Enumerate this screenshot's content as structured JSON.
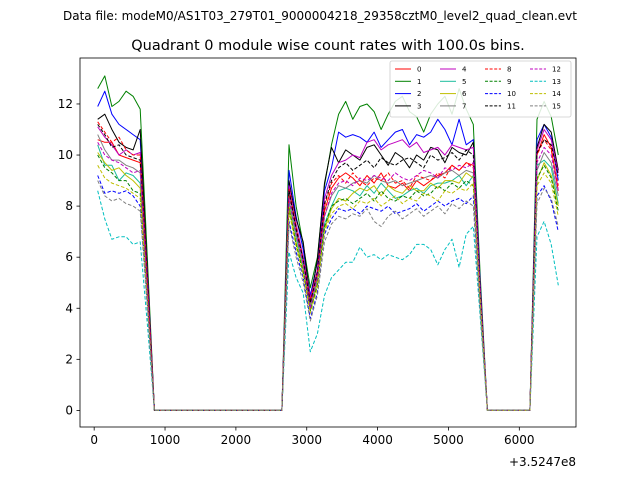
{
  "chart_data": {
    "type": "line",
    "suptitle": "Data file: modeM0/AS1T03_279T01_9000004218_29358cztM0_level2_quad_clean.evt",
    "title": "Quadrant 0 module wise count rates with 100.0s bins.",
    "xlabel": "",
    "ylabel": "",
    "x_offset_label": "+3.5247e8",
    "xlim": [
      -200,
      6800
    ],
    "ylim": [
      -0.65,
      13.8
    ],
    "xticks": [
      0,
      1000,
      2000,
      3000,
      4000,
      5000,
      6000
    ],
    "yticks": [
      0,
      2,
      4,
      6,
      8,
      10,
      12
    ],
    "grid": false,
    "legend_position": "top-right",
    "x": [
      50,
      150,
      250,
      350,
      450,
      550,
      650,
      750,
      850,
      950,
      1050,
      1150,
      1250,
      1350,
      1450,
      1550,
      1650,
      1750,
      1850,
      1950,
      2050,
      2150,
      2250,
      2350,
      2450,
      2550,
      2650,
      2750,
      2850,
      2950,
      3050,
      3150,
      3250,
      3350,
      3450,
      3550,
      3650,
      3750,
      3850,
      3950,
      4050,
      4150,
      4250,
      4350,
      4450,
      4550,
      4650,
      4750,
      4850,
      4950,
      5050,
      5150,
      5250,
      5350,
      5450,
      5550,
      5650,
      5750,
      5850,
      5950,
      6050,
      6150,
      6250,
      6350,
      6450,
      6550
    ],
    "series": [
      {
        "name": "0",
        "color": "#ff0000",
        "dash": "solid",
        "values": [
          10.6,
          10.5,
          10.5,
          10.0,
          9.9,
          9.8,
          9.7,
          5.0,
          0,
          0,
          0,
          0,
          0,
          0,
          0,
          0,
          0,
          0,
          0,
          0,
          0,
          0,
          0,
          0,
          0,
          0,
          0,
          8.5,
          7.0,
          5.8,
          4.2,
          5.2,
          7.8,
          8.7,
          9.1,
          9.3,
          9.1,
          8.8,
          9.2,
          8.9,
          9.3,
          8.8,
          8.7,
          8.9,
          8.6,
          9.0,
          8.8,
          9.0,
          9.2,
          9.3,
          9.6,
          9.4,
          9.7,
          9.6,
          4.5,
          0,
          0,
          0,
          0,
          0,
          0,
          0,
          10.0,
          10.8,
          10.3,
          8.6
        ]
      },
      {
        "name": "1",
        "color": "#008000",
        "dash": "solid",
        "values": [
          12.6,
          13.1,
          11.9,
          12.1,
          12.5,
          12.3,
          11.8,
          6.0,
          0,
          0,
          0,
          0,
          0,
          0,
          0,
          0,
          0,
          0,
          0,
          0,
          0,
          0,
          0,
          0,
          0,
          0,
          0,
          10.4,
          8.0,
          6.5,
          4.8,
          6.0,
          8.8,
          10.4,
          11.6,
          12.1,
          11.4,
          11.9,
          12.0,
          11.7,
          11.0,
          11.6,
          12.1,
          12.3,
          11.7,
          11.5,
          10.9,
          11.6,
          12.0,
          12.3,
          11.6,
          12.6,
          11.8,
          11.2,
          5.2,
          0,
          0,
          0,
          0,
          0,
          0,
          0,
          11.4,
          12.1,
          11.5,
          10.0
        ]
      },
      {
        "name": "2",
        "color": "#0000ff",
        "dash": "solid",
        "values": [
          11.9,
          12.5,
          11.6,
          11.2,
          11.0,
          10.8,
          10.6,
          5.5,
          0,
          0,
          0,
          0,
          0,
          0,
          0,
          0,
          0,
          0,
          0,
          0,
          0,
          0,
          0,
          0,
          0,
          0,
          0,
          9.4,
          7.6,
          6.3,
          4.5,
          5.8,
          8.6,
          9.5,
          10.9,
          10.7,
          10.8,
          10.7,
          10.5,
          10.9,
          10.3,
          10.6,
          10.9,
          11.0,
          10.4,
          10.8,
          10.7,
          10.9,
          11.4,
          11.0,
          10.4,
          11.4,
          10.4,
          10.6,
          4.9,
          0,
          0,
          0,
          0,
          0,
          0,
          0,
          10.6,
          11.2,
          10.7,
          9.0
        ]
      },
      {
        "name": "3",
        "color": "#000000",
        "dash": "solid",
        "values": [
          11.4,
          11.6,
          11.0,
          10.5,
          10.3,
          10.2,
          11.0,
          5.5,
          0,
          0,
          0,
          0,
          0,
          0,
          0,
          0,
          0,
          0,
          0,
          0,
          0,
          0,
          0,
          0,
          0,
          0,
          0,
          9.0,
          7.5,
          6.6,
          4.3,
          5.9,
          8.9,
          10.3,
          9.7,
          10.2,
          10.0,
          9.8,
          10.3,
          10.4,
          10.0,
          9.6,
          10.1,
          9.9,
          9.5,
          10.0,
          9.8,
          10.3,
          10.2,
          9.7,
          10.3,
          10.1,
          10.0,
          10.5,
          4.7,
          0,
          0,
          0,
          0,
          0,
          0,
          0,
          10.3,
          11.2,
          10.9,
          9.4
        ]
      },
      {
        "name": "4",
        "color": "#bf00bf",
        "dash": "solid",
        "values": [
          11.1,
          10.7,
          10.4,
          10.0,
          10.2,
          10.0,
          10.1,
          5.2,
          0,
          0,
          0,
          0,
          0,
          0,
          0,
          0,
          0,
          0,
          0,
          0,
          0,
          0,
          0,
          0,
          0,
          0,
          0,
          8.8,
          7.3,
          6.0,
          4.4,
          5.5,
          8.3,
          9.2,
          9.7,
          9.8,
          10.0,
          9.9,
          10.5,
          10.6,
          10.2,
          10.4,
          10.5,
          10.6,
          10.3,
          10.5,
          10.1,
          10.2,
          10.3,
          10.0,
          10.4,
          10.3,
          10.2,
          10.3,
          4.7,
          0,
          0,
          0,
          0,
          0,
          0,
          0,
          10.2,
          11.0,
          10.6,
          9.3
        ]
      },
      {
        "name": "5",
        "color": "#1abc9c",
        "dash": "solid",
        "values": [
          10.4,
          9.6,
          9.6,
          9.0,
          9.3,
          9.2,
          8.9,
          4.6,
          0,
          0,
          0,
          0,
          0,
          0,
          0,
          0,
          0,
          0,
          0,
          0,
          0,
          0,
          0,
          0,
          0,
          0,
          0,
          8.2,
          6.8,
          5.6,
          4.0,
          5.1,
          7.3,
          8.0,
          8.6,
          8.7,
          8.6,
          8.4,
          8.8,
          8.5,
          8.9,
          8.6,
          8.3,
          8.4,
          8.6,
          8.7,
          8.5,
          8.8,
          8.9,
          8.9,
          9.0,
          9.2,
          8.8,
          9.2,
          4.3,
          0,
          0,
          0,
          0,
          0,
          0,
          0,
          9.6,
          9.8,
          9.5,
          8.1
        ]
      },
      {
        "name": "6",
        "color": "#bfbf00",
        "dash": "solid",
        "values": [
          10.1,
          9.7,
          9.4,
          9.5,
          9.2,
          9.0,
          8.7,
          4.5,
          0,
          0,
          0,
          0,
          0,
          0,
          0,
          0,
          0,
          0,
          0,
          0,
          0,
          0,
          0,
          0,
          0,
          0,
          0,
          8.0,
          6.6,
          5.5,
          3.9,
          5.0,
          7.1,
          7.9,
          8.3,
          8.2,
          8.5,
          8.7,
          8.6,
          8.8,
          8.4,
          8.8,
          8.6,
          8.5,
          8.8,
          8.6,
          8.6,
          8.9,
          8.7,
          9.0,
          9.0,
          8.9,
          9.3,
          9.1,
          4.2,
          0,
          0,
          0,
          0,
          0,
          0,
          0,
          9.0,
          9.7,
          9.2,
          8.0
        ]
      },
      {
        "name": "7",
        "color": "#808080",
        "dash": "solid",
        "values": [
          10.8,
          10.2,
          9.8,
          9.8,
          9.6,
          9.5,
          9.3,
          4.8,
          0,
          0,
          0,
          0,
          0,
          0,
          0,
          0,
          0,
          0,
          0,
          0,
          0,
          0,
          0,
          0,
          0,
          0,
          0,
          8.6,
          7.0,
          5.8,
          4.1,
          5.3,
          7.6,
          8.4,
          8.8,
          8.7,
          8.9,
          9.0,
          8.9,
          9.2,
          9.0,
          8.9,
          9.0,
          8.8,
          8.9,
          9.0,
          9.1,
          9.2,
          9.1,
          9.3,
          9.4,
          9.2,
          9.4,
          9.3,
          4.4,
          0,
          0,
          0,
          0,
          0,
          0,
          0,
          9.4,
          10.1,
          9.7,
          8.4
        ]
      },
      {
        "name": "8",
        "color": "#ff0000",
        "dash": "dashed",
        "values": [
          11.3,
          10.9,
          10.5,
          10.7,
          10.2,
          10.0,
          10.0,
          5.1,
          0,
          0,
          0,
          0,
          0,
          0,
          0,
          0,
          0,
          0,
          0,
          0,
          0,
          0,
          0,
          0,
          0,
          0,
          0,
          8.7,
          7.2,
          5.9,
          4.3,
          5.4,
          8.0,
          8.9,
          9.2,
          8.9,
          9.3,
          9.0,
          8.8,
          9.1,
          9.0,
          9.3,
          8.9,
          9.0,
          8.7,
          9.2,
          9.1,
          9.0,
          9.3,
          9.1,
          9.6,
          9.4,
          9.7,
          9.5,
          4.6,
          0,
          0,
          0,
          0,
          0,
          0,
          0,
          10.0,
          10.6,
          10.2,
          8.8
        ]
      },
      {
        "name": "9",
        "color": "#008000",
        "dash": "dashed",
        "values": [
          10.0,
          9.5,
          9.3,
          9.0,
          9.0,
          8.6,
          8.5,
          4.4,
          0,
          0,
          0,
          0,
          0,
          0,
          0,
          0,
          0,
          0,
          0,
          0,
          0,
          0,
          0,
          0,
          0,
          0,
          0,
          7.9,
          6.5,
          5.4,
          3.9,
          4.9,
          7.2,
          8.0,
          8.2,
          8.3,
          8.1,
          8.3,
          8.5,
          8.2,
          8.6,
          8.3,
          8.2,
          8.4,
          8.3,
          8.6,
          8.4,
          8.5,
          8.8,
          8.6,
          8.9,
          8.7,
          9.0,
          8.8,
          4.1,
          0,
          0,
          0,
          0,
          0,
          0,
          0,
          9.1,
          9.6,
          9.1,
          7.8
        ]
      },
      {
        "name": "10",
        "color": "#0000ff",
        "dash": "dashed",
        "values": [
          9.2,
          8.5,
          8.6,
          8.5,
          8.6,
          8.4,
          8.0,
          4.2,
          0,
          0,
          0,
          0,
          0,
          0,
          0,
          0,
          0,
          0,
          0,
          0,
          0,
          0,
          0,
          0,
          0,
          0,
          0,
          7.4,
          6.2,
          5.2,
          3.6,
          4.6,
          6.9,
          7.5,
          7.9,
          7.8,
          7.9,
          7.7,
          8.0,
          7.9,
          7.8,
          8.0,
          7.7,
          7.8,
          7.9,
          8.1,
          7.8,
          8.0,
          8.2,
          8.0,
          8.2,
          8.3,
          8.1,
          8.4,
          3.9,
          0,
          0,
          0,
          0,
          0,
          0,
          0,
          8.4,
          8.8,
          8.2,
          7.0
        ]
      },
      {
        "name": "11",
        "color": "#000000",
        "dash": "dashed",
        "values": [
          11.2,
          10.8,
          10.3,
          10.4,
          10.0,
          9.9,
          9.8,
          5.0,
          0,
          0,
          0,
          0,
          0,
          0,
          0,
          0,
          0,
          0,
          0,
          0,
          0,
          0,
          0,
          0,
          0,
          0,
          0,
          8.6,
          7.1,
          5.9,
          4.2,
          5.4,
          8.1,
          9.0,
          9.5,
          9.7,
          9.4,
          9.6,
          9.8,
          9.5,
          9.9,
          9.7,
          9.6,
          9.8,
          9.9,
          9.7,
          9.5,
          10.0,
          9.8,
          9.9,
          10.1,
          9.8,
          10.2,
          10.0,
          4.6,
          0,
          0,
          0,
          0,
          0,
          0,
          0,
          10.1,
          10.6,
          10.4,
          9.2
        ]
      },
      {
        "name": "12",
        "color": "#bf00bf",
        "dash": "dashed",
        "values": [
          10.5,
          10.0,
          9.8,
          9.7,
          9.5,
          9.3,
          9.4,
          4.8,
          0,
          0,
          0,
          0,
          0,
          0,
          0,
          0,
          0,
          0,
          0,
          0,
          0,
          0,
          0,
          0,
          0,
          0,
          0,
          8.3,
          6.9,
          5.7,
          4.0,
          5.2,
          7.6,
          8.5,
          8.9,
          9.0,
          8.8,
          9.1,
          9.0,
          9.2,
          9.1,
          9.0,
          9.3,
          9.1,
          9.0,
          9.2,
          9.4,
          9.3,
          9.1,
          9.5,
          9.4,
          9.6,
          9.5,
          9.7,
          4.5,
          0,
          0,
          0,
          0,
          0,
          0,
          0,
          9.7,
          10.3,
          10.0,
          8.6
        ]
      },
      {
        "name": "13",
        "color": "#00bfbf",
        "dash": "dashed",
        "values": [
          8.6,
          7.5,
          6.7,
          6.8,
          6.8,
          6.5,
          6.6,
          3.4,
          0,
          0,
          0,
          0,
          0,
          0,
          0,
          0,
          0,
          0,
          0,
          0,
          0,
          0,
          0,
          0,
          0,
          0,
          0,
          6.2,
          5.2,
          4.6,
          2.3,
          3.0,
          4.5,
          5.2,
          5.5,
          5.8,
          5.8,
          6.4,
          6.0,
          6.1,
          5.9,
          6.1,
          6.0,
          5.9,
          6.1,
          6.5,
          6.5,
          6.3,
          5.7,
          6.3,
          6.7,
          5.6,
          6.9,
          7.2,
          3.6,
          0,
          0,
          0,
          0,
          0,
          0,
          0,
          6.8,
          7.4,
          6.5,
          4.9
        ]
      },
      {
        "name": "14",
        "color": "#bfbf00",
        "dash": "dashed",
        "values": [
          9.6,
          9.1,
          8.9,
          8.8,
          8.7,
          8.5,
          8.3,
          4.3,
          0,
          0,
          0,
          0,
          0,
          0,
          0,
          0,
          0,
          0,
          0,
          0,
          0,
          0,
          0,
          0,
          0,
          0,
          0,
          7.8,
          6.4,
          5.3,
          3.8,
          4.8,
          7.0,
          7.7,
          8.0,
          8.1,
          7.9,
          8.2,
          8.1,
          8.3,
          8.0,
          8.2,
          8.4,
          8.1,
          8.3,
          8.2,
          8.5,
          8.4,
          8.2,
          8.6,
          8.5,
          8.7,
          8.6,
          8.9,
          4.2,
          0,
          0,
          0,
          0,
          0,
          0,
          0,
          8.8,
          9.3,
          8.9,
          7.6
        ]
      },
      {
        "name": "15",
        "color": "#808080",
        "dash": "dashed",
        "values": [
          9.0,
          8.4,
          8.2,
          8.3,
          8.1,
          8.0,
          7.8,
          4.0,
          0,
          0,
          0,
          0,
          0,
          0,
          0,
          0,
          0,
          0,
          0,
          0,
          0,
          0,
          0,
          0,
          0,
          0,
          0,
          7.3,
          6.0,
          5.0,
          3.5,
          4.5,
          6.6,
          7.3,
          7.6,
          7.5,
          7.7,
          7.6,
          7.9,
          7.4,
          7.2,
          7.6,
          7.8,
          7.5,
          7.7,
          7.9,
          7.6,
          7.8,
          8.0,
          7.7,
          8.1,
          7.9,
          8.2,
          8.0,
          3.8,
          0,
          0,
          0,
          0,
          0,
          0,
          0,
          8.1,
          8.7,
          8.3,
          7.2
        ]
      }
    ]
  }
}
